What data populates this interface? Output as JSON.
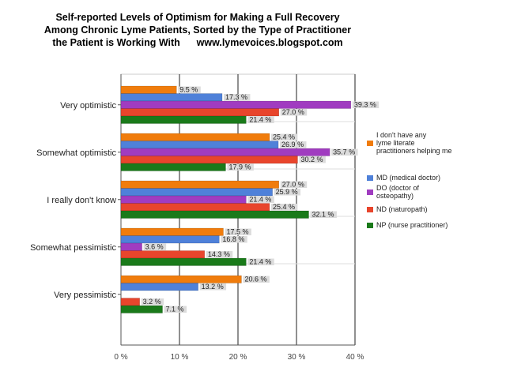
{
  "chart_data": {
    "type": "bar",
    "orientation": "horizontal",
    "title_lines": [
      "Self-reported Levels of Optimism for Making a Full Recovery",
      "Among Chronic Lyme Patients, Sorted by the Type of Practitioner",
      "the Patient is Working With      www.lymevoices.blogspot.com"
    ],
    "categories": [
      "Very optimistic",
      "Somewhat optimistic",
      "I really don't know",
      "Somewhat pessimistic",
      "Very pessimistic"
    ],
    "series": [
      {
        "name": "I don't have any lyme literate practitioners helping me",
        "legend_lines": [
          "I don't have any",
          "lyme literate",
          "practitioners helping me"
        ],
        "color": "#F07C0C",
        "values": [
          9.5,
          25.4,
          27.0,
          17.5,
          20.6
        ],
        "labels": [
          "9.5 %",
          "25.4 %",
          "27.0 %",
          "17.5 %",
          "20.6 %"
        ]
      },
      {
        "name": "MD (medical doctor)",
        "legend_lines": [
          "MD (medical doctor)"
        ],
        "color": "#4F81D9",
        "values": [
          17.3,
          26.9,
          25.9,
          16.8,
          13.2
        ],
        "labels": [
          "17.3 %",
          "26.9 %",
          "25.9 %",
          "16.8 %",
          "13.2 %"
        ]
      },
      {
        "name": "DO (doctor of osteopathy)",
        "legend_lines": [
          "DO (doctor of",
          "osteopathy)"
        ],
        "color": "#A03CC0",
        "values": [
          39.3,
          35.7,
          21.4,
          3.6,
          0
        ],
        "labels": [
          "39.3 %",
          "35.7 %",
          "21.4 %",
          "3.6 %",
          ""
        ]
      },
      {
        "name": "ND (naturopath)",
        "legend_lines": [
          "ND (naturopath)"
        ],
        "color": "#E8452C",
        "values": [
          27.0,
          30.2,
          25.4,
          14.3,
          3.2
        ],
        "labels": [
          "27.0 %",
          "30.2 %",
          "25.4 %",
          "14.3 %",
          "3.2 %"
        ]
      },
      {
        "name": "NP (nurse practitioner)",
        "legend_lines": [
          "NP (nurse practitioner)"
        ],
        "color": "#1A7A1A",
        "values": [
          21.4,
          17.9,
          32.1,
          21.4,
          7.1
        ],
        "labels": [
          "21.4 %",
          "17.9 %",
          "32.1 %",
          "21.4 %",
          "7.1 %"
        ]
      }
    ],
    "x_ticks": [
      0,
      10,
      20,
      30,
      40
    ],
    "x_tick_labels": [
      "0 %",
      "10 %",
      "20 %",
      "30 %",
      "40 %"
    ],
    "xlim": [
      0,
      40
    ],
    "grid": true,
    "legend_position": "right"
  }
}
